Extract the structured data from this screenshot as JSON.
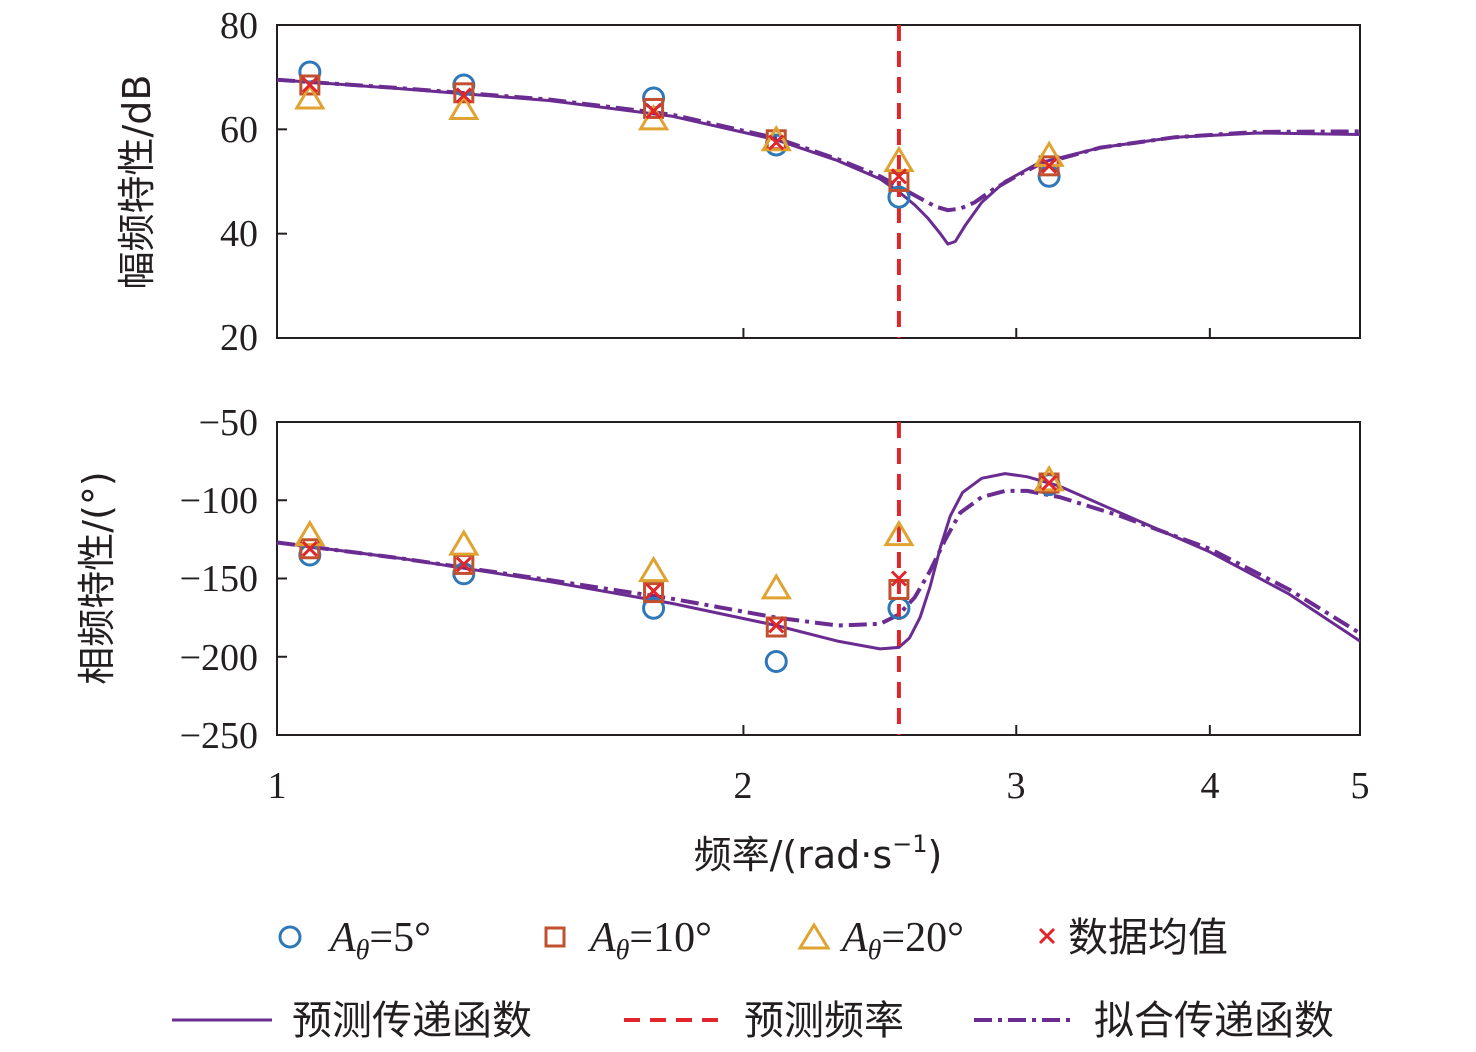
{
  "chart_data": [
    {
      "type": "line",
      "panel": "magnitude",
      "ylabel": "幅频特性/dB",
      "xscale": "log",
      "xlim": [
        1,
        5
      ],
      "ylim": [
        20,
        80
      ],
      "yticks": [
        20,
        40,
        60,
        80
      ],
      "xticks": [
        1,
        2,
        3,
        4,
        5
      ],
      "grid": false,
      "markers": {
        "x": [
          1.05,
          1.32,
          1.75,
          2.1,
          2.52,
          3.15
        ],
        "A5": [
          71,
          68.5,
          66,
          57,
          47,
          51
        ],
        "A10": [
          68.5,
          67,
          64,
          58,
          50,
          53
        ],
        "A20": [
          66,
          64,
          62,
          58,
          54,
          55
        ],
        "mean": [
          68.5,
          66.5,
          63.5,
          57.5,
          51,
          53
        ]
      },
      "curves": {
        "predicted": {
          "x": [
            1,
            1.2,
            1.5,
            1.8,
            2.1,
            2.3,
            2.45,
            2.52,
            2.58,
            2.63,
            2.68,
            2.71,
            2.74,
            2.78,
            2.85,
            2.95,
            3.1,
            3.4,
            3.8,
            4.3,
            5
          ],
          "y": [
            69.5,
            67.8,
            65.5,
            62.5,
            58.0,
            54.0,
            50.5,
            48.0,
            45.5,
            43.0,
            40.0,
            38.0,
            38.5,
            41.5,
            46.0,
            50.0,
            53.5,
            56.5,
            58.5,
            59.3,
            59.0
          ]
        },
        "fitted": {
          "x": [
            1,
            1.2,
            1.5,
            1.8,
            2.1,
            2.3,
            2.45,
            2.52,
            2.6,
            2.66,
            2.71,
            2.76,
            2.82,
            2.9,
            3.0,
            3.1,
            3.4,
            3.8,
            4.3,
            5
          ],
          "y": [
            69.5,
            67.9,
            65.7,
            62.8,
            58.3,
            54.3,
            51.0,
            49.0,
            46.8,
            45.2,
            44.5,
            44.8,
            46.0,
            48.5,
            51.0,
            53.2,
            56.5,
            58.5,
            59.5,
            59.6
          ]
        }
      },
      "predicted_frequency": 2.52
    },
    {
      "type": "line",
      "panel": "phase",
      "ylabel": "相频特性/(°)",
      "xlabel": "频率/(rad·s⁻¹)",
      "xscale": "log",
      "xlim": [
        1,
        5
      ],
      "ylim": [
        -250,
        -50
      ],
      "yticks": [
        -250,
        -200,
        -150,
        -100,
        -50
      ],
      "xticks": [
        1,
        2,
        3,
        4,
        5
      ],
      "grid": false,
      "markers": {
        "x": [
          1.05,
          1.32,
          1.75,
          2.1,
          2.52,
          3.15
        ],
        "A5": [
          -135,
          -147,
          -169,
          -203,
          -169,
          -90
        ],
        "A10": [
          -131,
          -141,
          -159,
          -181,
          -157,
          -89
        ],
        "A20": [
          -122,
          -128,
          -145,
          -156,
          -122,
          -87
        ],
        "mean": [
          -131,
          -141,
          -158,
          -180,
          -150,
          -89
        ]
      },
      "curves": {
        "predicted": {
          "x": [
            1,
            1.2,
            1.5,
            1.8,
            2.1,
            2.3,
            2.45,
            2.52,
            2.56,
            2.6,
            2.64,
            2.68,
            2.72,
            2.77,
            2.85,
            2.95,
            3.05,
            3.2,
            3.5,
            4.0,
            4.5,
            5
          ],
          "y": [
            -127,
            -137,
            -152,
            -166,
            -180,
            -190,
            -195,
            -194,
            -188,
            -175,
            -155,
            -130,
            -110,
            -95,
            -86,
            -83,
            -85,
            -91,
            -108,
            -133,
            -160,
            -190
          ]
        },
        "fitted": {
          "x": [
            1,
            1.2,
            1.5,
            1.8,
            2.1,
            2.3,
            2.45,
            2.52,
            2.58,
            2.64,
            2.7,
            2.76,
            2.85,
            2.95,
            3.05,
            3.2,
            3.5,
            4.0,
            4.5,
            5
          ],
          "y": [
            -127,
            -137,
            -151,
            -163,
            -175,
            -180,
            -179,
            -173,
            -162,
            -145,
            -125,
            -108,
            -98,
            -94,
            -94,
            -98,
            -110,
            -131,
            -157,
            -185
          ]
        }
      },
      "predicted_frequency": 2.52
    }
  ],
  "legend": {
    "a5_label": "=5°",
    "a10_label": "=10°",
    "a20_label": "=20°",
    "a_symbol": "A",
    "a_sub": "θ",
    "mean_label": "数据均值",
    "predicted_tf_label": "预测传递函数",
    "predicted_freq_label": "预测频率",
    "fitted_tf_label": "拟合传递函数"
  },
  "axis_text": {
    "top_ylabel": "幅频特性/dB",
    "bottom_ylabel": "相频特性/(°)",
    "xlabel_main": "频率/(rad·s",
    "xlabel_sup": "−1",
    "xlabel_end": ")",
    "x_tick_labels": [
      "1",
      "2",
      "3",
      "4",
      "5"
    ],
    "top_y_tick_labels": [
      "80",
      "60",
      "40",
      "20"
    ],
    "bottom_y_tick_labels": [
      "−50",
      "−100",
      "−150",
      "−200",
      "−250"
    ]
  },
  "colors": {
    "curve": "#6b2c91",
    "vline": "#e0262b",
    "circle": "#2f78b7",
    "square": "#c1502e",
    "triangle": "#e0a332",
    "cross": "#e0262b",
    "axis": "#231f20"
  }
}
